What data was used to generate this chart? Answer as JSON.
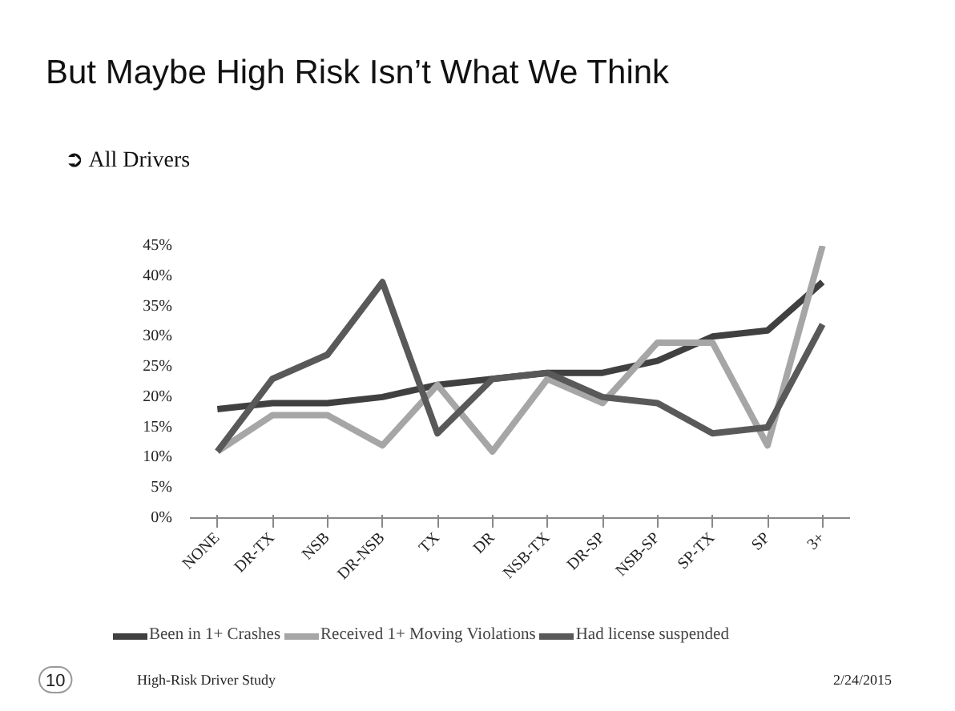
{
  "chart_data": {
    "type": "line",
    "title": "But Maybe High Risk Isn’t What We Think",
    "subtitle": "➲ All Drivers",
    "categories": [
      "NONE",
      "DR-TX",
      "NSB",
      "DR-NSB",
      "TX",
      "DR",
      "NSB-TX",
      "DR-SP",
      "NSB-SP",
      "SP-TX",
      "SP",
      "3+"
    ],
    "series": [
      {
        "name": "Been in 1+ Crashes",
        "color": "#404040",
        "values": [
          18,
          19,
          19,
          20,
          22,
          23,
          24,
          24,
          26,
          30,
          31,
          39
        ]
      },
      {
        "name": "Received 1+ Moving Violations",
        "color": "#a6a6a6",
        "values": [
          11,
          17,
          17,
          12,
          22,
          11,
          23,
          19,
          29,
          29,
          12,
          45
        ]
      },
      {
        "name": "Had license suspended",
        "color": "#595959",
        "values": [
          11,
          23,
          27,
          39,
          14,
          23,
          24,
          20,
          19,
          14,
          15,
          32
        ]
      }
    ],
    "ylim": [
      0,
      45
    ],
    "yticks": [
      {
        "value": 0,
        "label": "0%"
      },
      {
        "value": 5,
        "label": "5%"
      },
      {
        "value": 10,
        "label": "10%"
      },
      {
        "value": 15,
        "label": "15%"
      },
      {
        "value": 20,
        "label": "20%"
      },
      {
        "value": 25,
        "label": "25%"
      },
      {
        "value": 30,
        "label": "30%"
      },
      {
        "value": 35,
        "label": "35%"
      },
      {
        "value": 40,
        "label": "40%"
      },
      {
        "value": 45,
        "label": "45%"
      }
    ],
    "grid": false,
    "legend": "bottom",
    "marker": "none",
    "line_style": "solid",
    "annotations": [
      "10",
      "High-Risk Driver Study",
      "2/24/2015"
    ]
  }
}
